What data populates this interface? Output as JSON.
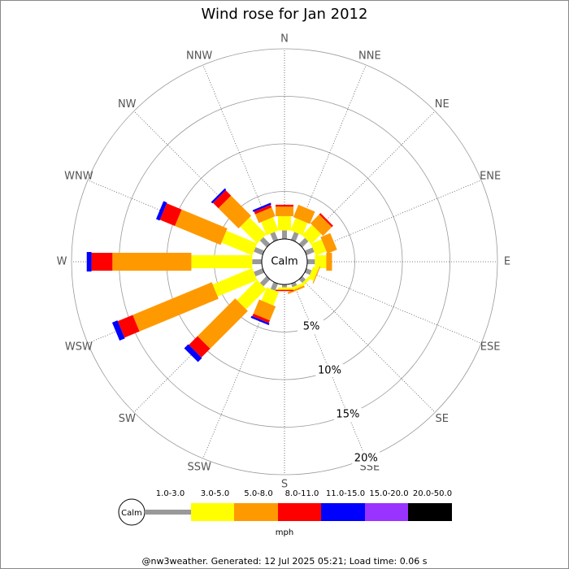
{
  "chart_data": {
    "type": "windrose",
    "title": "Wind rose for Jan 2012",
    "categories": [
      "N",
      "NNE",
      "NE",
      "ENE",
      "E",
      "ESE",
      "SE",
      "SSE",
      "S",
      "SSW",
      "SW",
      "WSW",
      "W",
      "WNW",
      "NW",
      "NNW"
    ],
    "calm_label": "Calm",
    "unit": "mph",
    "rlim": [
      0,
      20
    ],
    "rticks": [
      {
        "value": 5,
        "label": "5%"
      },
      {
        "value": 10,
        "label": "10%"
      },
      {
        "value": 15,
        "label": "15%"
      },
      {
        "value": 20,
        "label": "20%"
      }
    ],
    "series": [
      {
        "name": "1.0-3.0",
        "color": "#999999",
        "values": [
          0.9,
          0.9,
          0.9,
          0.9,
          0.8,
          0.6,
          0.5,
          0.4,
          0.3,
          0.8,
          1.0,
          1.0,
          1.0,
          1.0,
          1.0,
          0.9
        ]
      },
      {
        "name": "3.0-5.0",
        "color": "#ffff00",
        "values": [
          1.5,
          1.4,
          1.5,
          1.2,
          1.2,
          0.6,
          0.3,
          0.3,
          0.2,
          1.5,
          3.0,
          4.5,
          6.4,
          3.5,
          2.5,
          1.5
        ]
      },
      {
        "name": "5.0-8.0",
        "color": "#ff9900",
        "values": [
          1.0,
          1.4,
          1.3,
          1.1,
          0.6,
          0.1,
          0,
          0.2,
          0.1,
          1.6,
          5.6,
          9.0,
          8.3,
          5.2,
          3.0,
          1.0
        ]
      },
      {
        "name": "8.0-11.0",
        "color": "#ff0000",
        "values": [
          0.2,
          0,
          0.2,
          0,
          0,
          0,
          0,
          0,
          0.1,
          0.3,
          1.3,
          1.7,
          2.2,
          1.7,
          0.8,
          0.3
        ]
      },
      {
        "name": "11.0-15.0",
        "color": "#0000ff",
        "values": [
          0,
          0,
          0,
          0,
          0,
          0,
          0,
          0,
          0,
          0.2,
          0.6,
          0.6,
          0.5,
          0.4,
          0.2,
          0.2
        ]
      },
      {
        "name": "15.0-20.0",
        "color": "#9933ff",
        "values": [
          0,
          0,
          0,
          0,
          0,
          0,
          0,
          0,
          0,
          0,
          0,
          0,
          0,
          0,
          0,
          0
        ]
      },
      {
        "name": "20.0-50.0",
        "color": "#000000",
        "values": [
          0,
          0,
          0,
          0,
          0,
          0,
          0,
          0,
          0,
          0,
          0,
          0,
          0,
          0,
          0,
          0
        ]
      }
    ],
    "footer": "@nw3weather. Generated: 12 Jul 2025 05:21; Load time: 0.06 s"
  }
}
